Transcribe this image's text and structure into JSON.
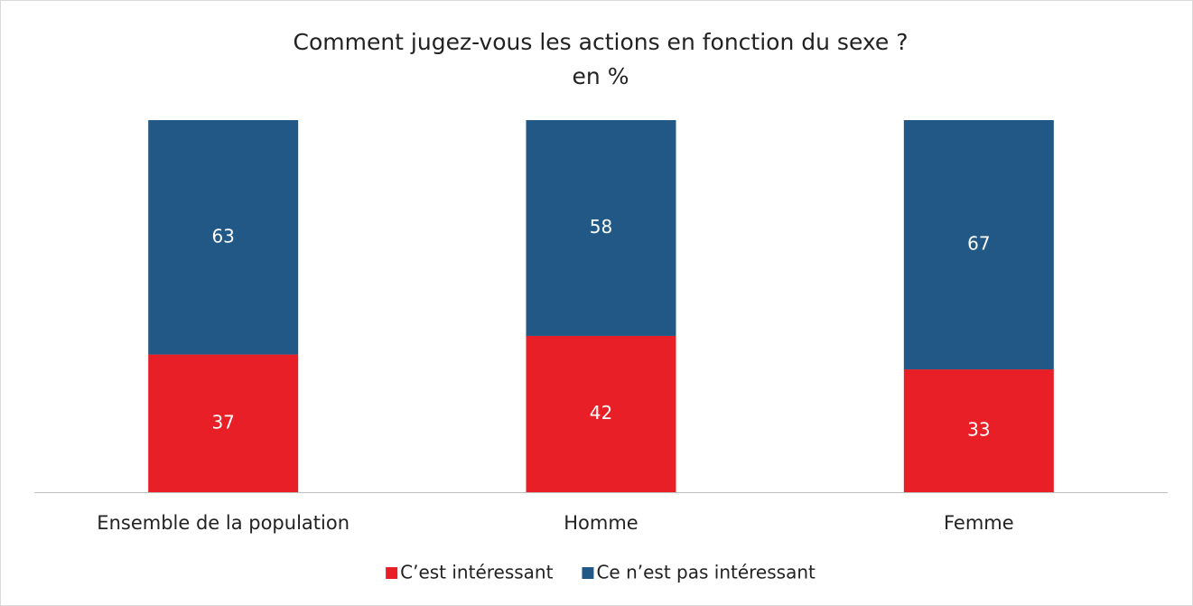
{
  "chart_data": {
    "type": "stacked_bar",
    "title": "Comment jugez-vous les actions en fonction du sexe ?",
    "subtitle": "en %",
    "categories": [
      "Ensemble de la population",
      "Homme",
      "Femme"
    ],
    "series": [
      {
        "name": "C’est intéressant",
        "color": "#e81f27",
        "values": [
          37,
          42,
          33
        ]
      },
      {
        "name": "Ce n’est pas intéressant",
        "color": "#215886",
        "values": [
          63,
          58,
          67
        ]
      }
    ],
    "legend": "bottom"
  }
}
